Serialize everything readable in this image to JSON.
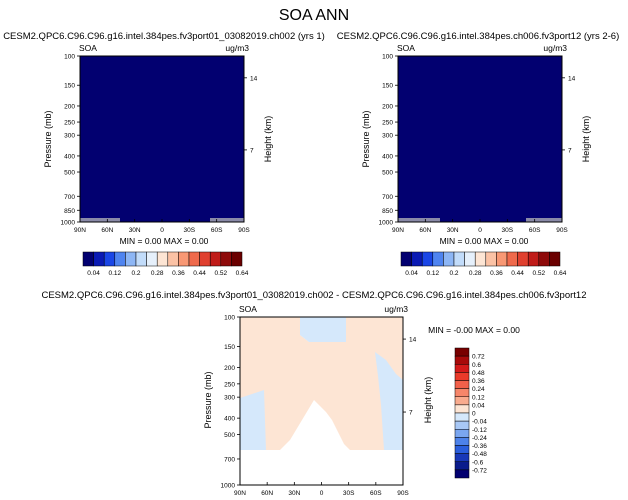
{
  "figure": {
    "title": "SOA ANN"
  },
  "panels": [
    {
      "title": "CESM2.QPC6.C96.C96.g16.intel.384pes.fv3port01_03082019.ch002 (yrs 1)",
      "var_label": "SOA",
      "units": "ug/m3",
      "ylabel": "Pressure (mb)",
      "ylabel_right": "Height (km)",
      "minmax": "MIN =   0.00   MAX =   0.00"
    },
    {
      "title": "CESM2.QPC6.C96.C96.g16.intel.384pes.ch006.fv3port12 (yrs 2-6)",
      "var_label": "SOA",
      "units": "ug/m3",
      "ylabel": "Pressure (mb)",
      "ylabel_right": "Height (km)",
      "minmax": "MIN =   0.00   MAX =   0.00"
    },
    {
      "title": "CESM2.QPC6.C96.C96.g16.intel.384pes.fv3port01_03082019.ch002 - CESM2.QPC6.C96.C96.g16.intel.384pes.ch006.fv3port12",
      "var_label": "SOA",
      "units": "ug/m3",
      "ylabel": "Pressure (mb)",
      "ylabel_right": "Height (km)",
      "minmax": "MIN =  -0.00   MAX =   0.00"
    }
  ],
  "chart_data": [
    {
      "type": "heatmap",
      "title": "CESM2.QPC6.C96.C96.g16.intel.384pes.fv3port01_03082019.ch002 (yrs 1)",
      "xlabel": "",
      "ylabel": "Pressure (mb)",
      "ylabel_right": "Height (km)",
      "x_ticks": [
        "90N",
        "60N",
        "30N",
        "0",
        "30S",
        "60S",
        "90S"
      ],
      "y_ticks": [
        100,
        150,
        200,
        250,
        300,
        400,
        500,
        700,
        850,
        1000
      ],
      "y_right_ticks": [
        14,
        7
      ],
      "ylim": [
        1000,
        100
      ],
      "y_scale": "log",
      "fill_value": 0.0,
      "fill_color": "#020070",
      "min": 0.0,
      "max": 0.0
    },
    {
      "type": "heatmap",
      "title": "CESM2.QPC6.C96.C96.g16.intel.384pes.ch006.fv3port12 (yrs 2-6)",
      "xlabel": "",
      "ylabel": "Pressure (mb)",
      "ylabel_right": "Height (km)",
      "x_ticks": [
        "90N",
        "60N",
        "30N",
        "0",
        "30S",
        "60S",
        "90S"
      ],
      "y_ticks": [
        100,
        150,
        200,
        250,
        300,
        400,
        500,
        700,
        850,
        1000
      ],
      "y_right_ticks": [
        14,
        7
      ],
      "ylim": [
        1000,
        100
      ],
      "y_scale": "log",
      "fill_value": 0.0,
      "fill_color": "#020070",
      "min": 0.0,
      "max": 0.0
    },
    {
      "type": "heatmap",
      "title": "CESM2.QPC6.C96.C96.g16.intel.384pes.fv3port01_03082019.ch002 - CESM2.QPC6.C96.C96.g16.intel.384pes.ch006.fv3port12",
      "xlabel": "",
      "ylabel": "Pressure (mb)",
      "ylabel_right": "Height (km)",
      "x_ticks": [
        "90N",
        "60N",
        "30N",
        "0",
        "30S",
        "60S",
        "90S"
      ],
      "y_ticks": [
        100,
        150,
        200,
        250,
        300,
        400,
        500,
        700,
        1000
      ],
      "y_right_ticks": [
        14,
        7
      ],
      "ylim": [
        1000,
        100
      ],
      "y_scale": "log",
      "min": -0.0,
      "max": 0.0,
      "regions": [
        {
          "value": "positive",
          "color": "#fde5d4"
        },
        {
          "value": "negative",
          "color": "#d5e8fb"
        },
        {
          "value": "missing",
          "color": "#ffffff",
          "below_pressure": 640
        }
      ]
    }
  ],
  "colorbar_top": {
    "labels": [
      "0.04",
      "0.12",
      "0.2",
      "0.28",
      "0.36",
      "0.44",
      "0.52",
      "0.64"
    ],
    "colors": [
      "#020070",
      "#0a1ab4",
      "#1a46e6",
      "#4f84f0",
      "#8db6f5",
      "#c2dcfa",
      "#e6f0fb",
      "#fde5d4",
      "#fbc2a5",
      "#f89874",
      "#ef6a4c",
      "#e0402f",
      "#c01c19",
      "#8e0a0a",
      "#6a0000"
    ]
  },
  "colorbar_diff": {
    "labels": [
      "0.72",
      "0.6",
      "0.48",
      "0.36",
      "0.24",
      "0.12",
      "0.04",
      "0",
      "-0.04",
      "-0.12",
      "-0.24",
      "-0.36",
      "-0.48",
      "-0.6",
      "-0.72"
    ],
    "colors": [
      "#780000",
      "#a80a0a",
      "#d41a1a",
      "#ea3a2a",
      "#f2604a",
      "#f6866a",
      "#f9ab8e",
      "#fde5d4",
      "#d5e8fb",
      "#a8c8f6",
      "#7aa6f0",
      "#4d82ea",
      "#2a5edc",
      "#1838b8",
      "#0a1c8c",
      "#020070"
    ]
  }
}
